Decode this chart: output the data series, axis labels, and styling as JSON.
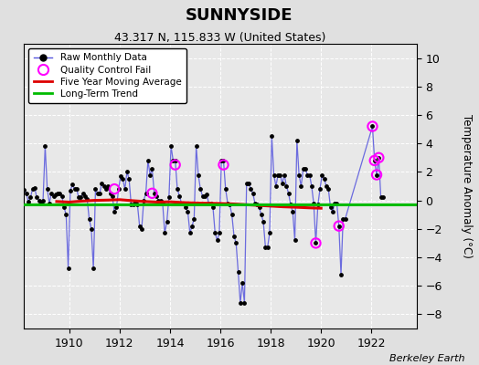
{
  "title": "SUNNYSIDE",
  "subtitle": "43.317 N, 115.833 W (United States)",
  "ylabel": "Temperature Anomaly (°C)",
  "credit": "Berkeley Earth",
  "xlim": [
    1908.2,
    1923.8
  ],
  "ylim": [
    -9,
    11
  ],
  "yticks": [
    -8,
    -6,
    -4,
    -2,
    0,
    2,
    4,
    6,
    8,
    10
  ],
  "xticks": [
    1910,
    1912,
    1914,
    1916,
    1918,
    1920,
    1922
  ],
  "bg_color": "#e8e8e8",
  "fig_bg_color": "#e0e0e0",
  "raw_color": "#5555dd",
  "raw_marker_color": "#000000",
  "ma_color": "#dd0000",
  "trend_color": "#00bb00",
  "qc_color": "#ff00ff",
  "raw_monthly": [
    [
      1908.042,
      0.7
    ],
    [
      1908.125,
      0.5
    ],
    [
      1908.208,
      0.75
    ],
    [
      1908.292,
      0.5
    ],
    [
      1908.375,
      -0.1
    ],
    [
      1908.458,
      0.2
    ],
    [
      1908.542,
      0.8
    ],
    [
      1908.625,
      0.9
    ],
    [
      1908.708,
      0.2
    ],
    [
      1908.792,
      0.0
    ],
    [
      1908.875,
      -0.2
    ],
    [
      1908.958,
      0.0
    ],
    [
      1909.042,
      3.8
    ],
    [
      1909.125,
      0.8
    ],
    [
      1909.208,
      -0.2
    ],
    [
      1909.292,
      0.5
    ],
    [
      1909.375,
      0.3
    ],
    [
      1909.458,
      0.4
    ],
    [
      1909.542,
      0.5
    ],
    [
      1909.625,
      0.5
    ],
    [
      1909.708,
      0.3
    ],
    [
      1909.792,
      -0.5
    ],
    [
      1909.875,
      -1.0
    ],
    [
      1909.958,
      -4.8
    ],
    [
      1910.042,
      0.7
    ],
    [
      1910.125,
      1.1
    ],
    [
      1910.208,
      0.8
    ],
    [
      1910.292,
      0.8
    ],
    [
      1910.375,
      0.2
    ],
    [
      1910.458,
      0.2
    ],
    [
      1910.542,
      0.5
    ],
    [
      1910.625,
      0.3
    ],
    [
      1910.708,
      0.1
    ],
    [
      1910.792,
      -1.3
    ],
    [
      1910.875,
      -2.0
    ],
    [
      1910.958,
      -4.8
    ],
    [
      1911.042,
      0.8
    ],
    [
      1911.125,
      0.5
    ],
    [
      1911.208,
      0.5
    ],
    [
      1911.292,
      1.2
    ],
    [
      1911.375,
      1.0
    ],
    [
      1911.458,
      0.8
    ],
    [
      1911.542,
      1.0
    ],
    [
      1911.625,
      0.5
    ],
    [
      1911.708,
      0.3
    ],
    [
      1911.792,
      -0.8
    ],
    [
      1911.875,
      -0.5
    ],
    [
      1911.958,
      0.8
    ],
    [
      1912.042,
      1.7
    ],
    [
      1912.125,
      1.5
    ],
    [
      1912.208,
      0.8
    ],
    [
      1912.292,
      2.0
    ],
    [
      1912.375,
      1.5
    ],
    [
      1912.458,
      -0.3
    ],
    [
      1912.542,
      -0.3
    ],
    [
      1912.625,
      -0.1
    ],
    [
      1912.708,
      -0.3
    ],
    [
      1912.792,
      -1.8
    ],
    [
      1912.875,
      -2.0
    ],
    [
      1912.958,
      0.0
    ],
    [
      1913.042,
      0.5
    ],
    [
      1913.125,
      2.8
    ],
    [
      1913.208,
      1.8
    ],
    [
      1913.292,
      2.2
    ],
    [
      1913.375,
      0.5
    ],
    [
      1913.458,
      0.3
    ],
    [
      1913.542,
      0.0
    ],
    [
      1913.625,
      0.0
    ],
    [
      1913.708,
      -0.2
    ],
    [
      1913.792,
      -2.3
    ],
    [
      1913.875,
      -1.5
    ],
    [
      1913.958,
      0.2
    ],
    [
      1914.042,
      3.8
    ],
    [
      1914.125,
      2.8
    ],
    [
      1914.208,
      2.8
    ],
    [
      1914.292,
      0.8
    ],
    [
      1914.375,
      0.3
    ],
    [
      1914.458,
      -0.2
    ],
    [
      1914.542,
      -0.2
    ],
    [
      1914.625,
      -0.5
    ],
    [
      1914.708,
      -0.8
    ],
    [
      1914.792,
      -2.3
    ],
    [
      1914.875,
      -1.8
    ],
    [
      1914.958,
      -1.3
    ],
    [
      1915.042,
      3.8
    ],
    [
      1915.125,
      1.8
    ],
    [
      1915.208,
      0.8
    ],
    [
      1915.292,
      0.3
    ],
    [
      1915.375,
      0.3
    ],
    [
      1915.458,
      0.4
    ],
    [
      1915.542,
      -0.2
    ],
    [
      1915.625,
      -0.2
    ],
    [
      1915.708,
      -0.5
    ],
    [
      1915.792,
      -2.3
    ],
    [
      1915.875,
      -2.8
    ],
    [
      1915.958,
      -2.3
    ],
    [
      1916.042,
      2.8
    ],
    [
      1916.125,
      2.8
    ],
    [
      1916.208,
      0.8
    ],
    [
      1916.292,
      -0.2
    ],
    [
      1916.375,
      -0.3
    ],
    [
      1916.458,
      -1.0
    ],
    [
      1916.542,
      -2.5
    ],
    [
      1916.625,
      -3.0
    ],
    [
      1916.708,
      -5.0
    ],
    [
      1916.792,
      -7.2
    ],
    [
      1916.875,
      -5.8
    ],
    [
      1916.958,
      -7.2
    ],
    [
      1917.042,
      1.2
    ],
    [
      1917.125,
      1.2
    ],
    [
      1917.208,
      0.8
    ],
    [
      1917.292,
      0.5
    ],
    [
      1917.375,
      -0.2
    ],
    [
      1917.458,
      -0.3
    ],
    [
      1917.542,
      -0.5
    ],
    [
      1917.625,
      -1.0
    ],
    [
      1917.708,
      -1.5
    ],
    [
      1917.792,
      -3.3
    ],
    [
      1917.875,
      -3.3
    ],
    [
      1917.958,
      -2.3
    ],
    [
      1918.042,
      4.5
    ],
    [
      1918.125,
      1.8
    ],
    [
      1918.208,
      1.0
    ],
    [
      1918.292,
      1.8
    ],
    [
      1918.375,
      1.8
    ],
    [
      1918.458,
      1.2
    ],
    [
      1918.542,
      1.8
    ],
    [
      1918.625,
      1.0
    ],
    [
      1918.708,
      0.5
    ],
    [
      1918.792,
      -0.3
    ],
    [
      1918.875,
      -0.8
    ],
    [
      1918.958,
      -2.8
    ],
    [
      1919.042,
      4.2
    ],
    [
      1919.125,
      1.8
    ],
    [
      1919.208,
      1.0
    ],
    [
      1919.292,
      2.2
    ],
    [
      1919.375,
      2.2
    ],
    [
      1919.458,
      1.8
    ],
    [
      1919.542,
      1.8
    ],
    [
      1919.625,
      1.0
    ],
    [
      1919.708,
      -0.2
    ],
    [
      1919.792,
      -3.0
    ],
    [
      1919.875,
      -0.3
    ],
    [
      1919.958,
      0.8
    ],
    [
      1920.042,
      1.8
    ],
    [
      1920.125,
      1.5
    ],
    [
      1920.208,
      1.0
    ],
    [
      1920.292,
      0.8
    ],
    [
      1920.375,
      -0.5
    ],
    [
      1920.458,
      -0.8
    ],
    [
      1920.542,
      -0.2
    ],
    [
      1920.625,
      -0.2
    ],
    [
      1920.708,
      -1.8
    ],
    [
      1920.792,
      -5.2
    ],
    [
      1920.875,
      -1.3
    ],
    [
      1920.958,
      -1.3
    ],
    [
      1922.042,
      5.2
    ],
    [
      1922.125,
      2.8
    ],
    [
      1922.208,
      1.8
    ],
    [
      1922.292,
      3.0
    ],
    [
      1922.375,
      0.2
    ],
    [
      1922.458,
      0.2
    ]
  ],
  "qc_fail": [
    [
      1911.792,
      0.8
    ],
    [
      1913.292,
      0.5
    ],
    [
      1914.208,
      2.5
    ],
    [
      1916.125,
      2.5
    ],
    [
      1919.792,
      -3.0
    ],
    [
      1920.708,
      -1.8
    ],
    [
      1922.042,
      5.2
    ],
    [
      1922.125,
      2.8
    ],
    [
      1922.208,
      1.8
    ],
    [
      1922.292,
      3.0
    ]
  ],
  "moving_avg": [
    [
      1909.5,
      -0.08
    ],
    [
      1910.0,
      -0.12
    ],
    [
      1910.5,
      -0.05
    ],
    [
      1911.0,
      0.0
    ],
    [
      1911.5,
      0.02
    ],
    [
      1912.0,
      0.05
    ],
    [
      1912.5,
      -0.02
    ],
    [
      1913.0,
      -0.08
    ],
    [
      1913.5,
      -0.12
    ],
    [
      1914.0,
      -0.1
    ],
    [
      1914.5,
      -0.15
    ],
    [
      1915.0,
      -0.18
    ],
    [
      1915.5,
      -0.2
    ],
    [
      1916.0,
      -0.22
    ],
    [
      1916.5,
      -0.25
    ],
    [
      1917.0,
      -0.3
    ],
    [
      1917.5,
      -0.35
    ],
    [
      1918.0,
      -0.4
    ],
    [
      1918.5,
      -0.45
    ],
    [
      1919.0,
      -0.48
    ],
    [
      1919.5,
      -0.52
    ],
    [
      1920.0,
      -0.55
    ]
  ],
  "trend_x": [
    1908.0,
    1923.8
  ],
  "trend_y": [
    -0.3,
    -0.3
  ]
}
